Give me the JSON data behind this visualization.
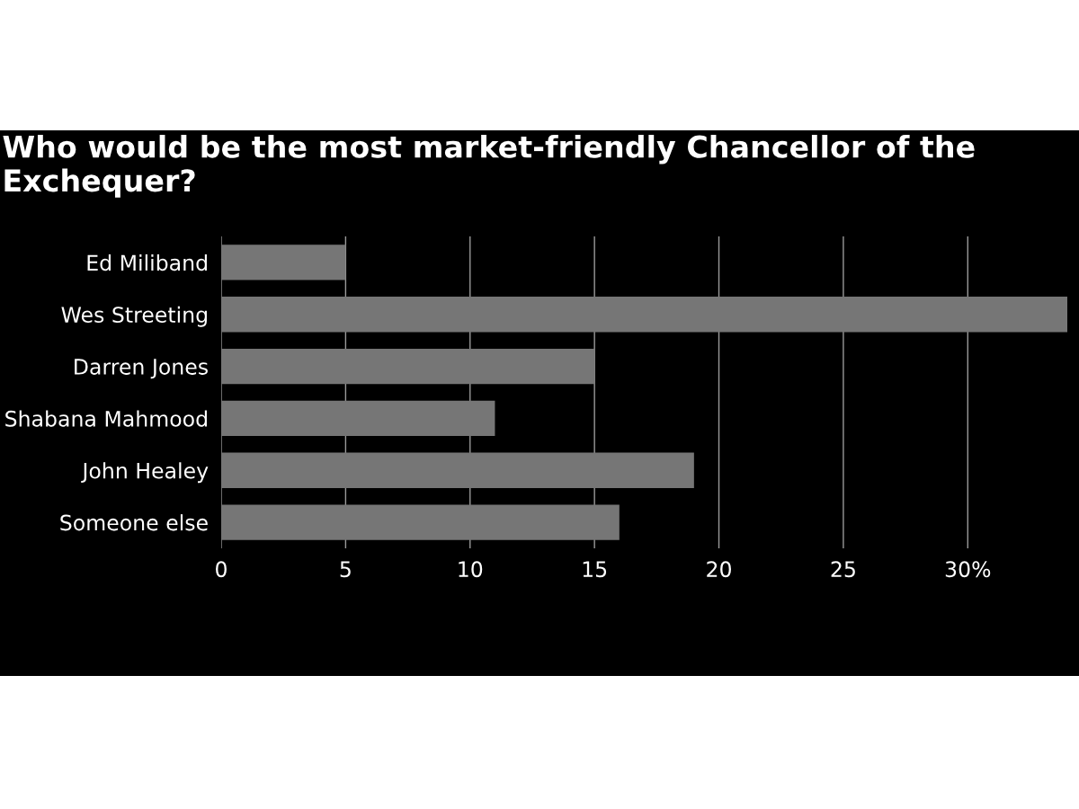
{
  "chart_data": {
    "type": "bar",
    "orientation": "horizontal",
    "title": "Who would be the most market-friendly Chancellor of the Exchequer?",
    "categories": [
      "Ed Miliband",
      "Wes Streeting",
      "Darren Jones",
      "Shabana Mahmood",
      "John Healey",
      "Someone else"
    ],
    "values": [
      5,
      34,
      15,
      11,
      19,
      16
    ],
    "color": "#767676",
    "xlim": [
      0,
      34
    ],
    "xticks": [
      0,
      5,
      10,
      15,
      20,
      25,
      {
        "value": 30,
        "label": "30%"
      }
    ],
    "grid": "x",
    "legend": false
  }
}
